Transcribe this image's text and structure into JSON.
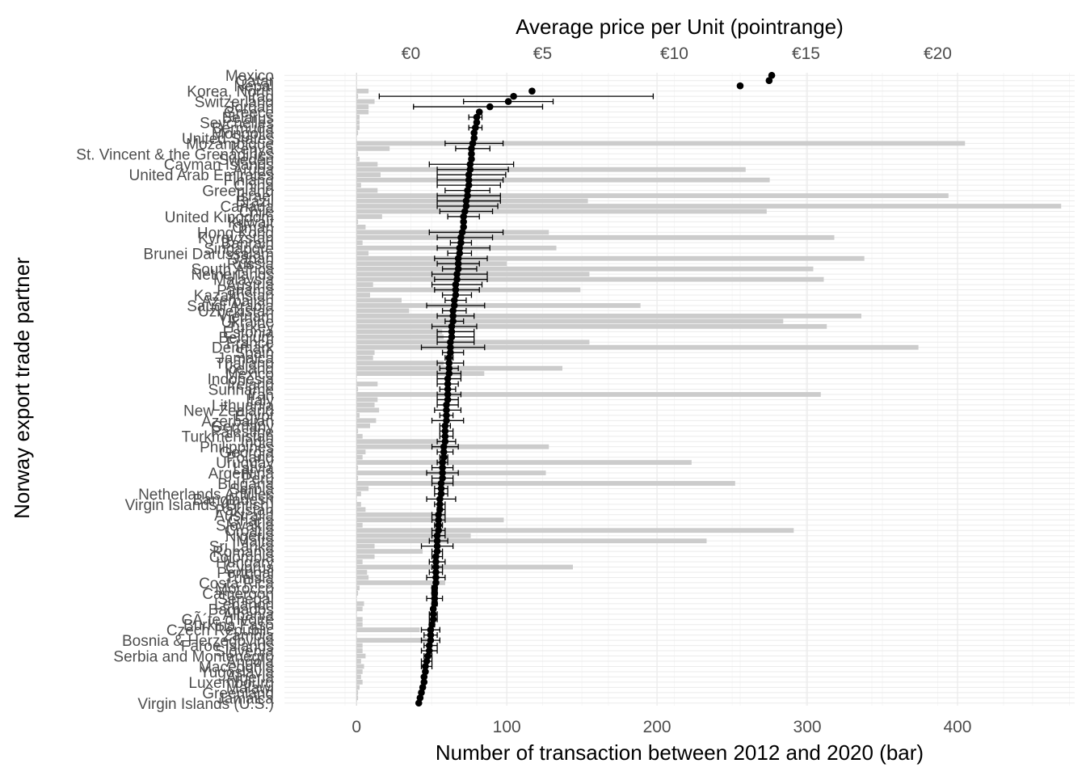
{
  "chart_data": {
    "type": "bar",
    "x_title_bottom": "Number of transaction between 2012 and 2020 (bar)",
    "x_title_top": "Average price per Unit (pointrange)",
    "y_title": "Norway export trade partner",
    "bottom_axis": {
      "range": [
        -48,
        478
      ],
      "ticks": [
        0,
        100,
        200,
        300,
        400
      ]
    },
    "top_axis": {
      "range": [
        -4.8,
        25.2
      ],
      "ticks": [
        0,
        5,
        10,
        15,
        20
      ],
      "tick_labels": [
        "€0",
        "€5",
        "€10",
        "€15",
        "€20"
      ]
    },
    "grid": true,
    "legend": "none",
    "colors": {
      "bar": "#cccccc",
      "point": "#000000",
      "grid_major": "#ebebeb",
      "grid_minor": "#f4f4f4",
      "zero_line": "#d9d9d9"
    },
    "categories": [
      "Mexico",
      "Qatar",
      "Nepal",
      "Korea, North",
      "Iraq",
      "Switzerland",
      "Jordan",
      "Greece",
      "Belarus",
      "Seychelles",
      "Bermuda",
      "Mongolia",
      "United States",
      "Mozambique",
      "Kenya",
      "St. Vincent & the Grenadines",
      "Sweden",
      "Cayman Islands",
      "Aruba",
      "United Arab Emirates",
      "Finland",
      "China",
      "Greenland",
      "Israel",
      "Brazil",
      "Canada",
      "Chile",
      "United Kingdom",
      "Kuwait",
      "Oman",
      "Hong Kong",
      "Kyrgyzstan",
      "Bahrain",
      "Singapore",
      "Brunei Darussalam",
      "Japan",
      "Russia",
      "South Africa",
      "Netherlands",
      "Malaysia",
      "Austria",
      "Panama",
      "Kazakhstan",
      "Azerbaijan",
      "Saudi Arabia",
      "Uzbekistan",
      "Vietnam",
      "Ukraine",
      "Turkey",
      "Estonia",
      "Belgium",
      "France",
      "Denmark",
      "Spain",
      "Jamaica",
      "Thailand",
      "Iceland",
      "Mexico ",
      "Indonesia",
      "Ireland",
      "Suriname",
      "Iran",
      "Italy",
      "Lithuania",
      "New Zealand",
      "Egypt",
      "Azerbaijan ",
      "Germany",
      "Palestine",
      "Turkmenistan",
      "India",
      "Philippines",
      "Georgia",
      "Poland",
      "Uruguay",
      "Latvia",
      "Argentina",
      "Peru",
      "Bulgaria",
      "Serbia",
      "Netherlands Antilles",
      "Bangladesh",
      "Virgin Islands (British)",
      "Pakistan",
      "Australia",
      "Ghana",
      "Slovakia",
      "Croatia",
      "Nigeria",
      "Malta",
      "Sri Lanka",
      "Romania",
      "Colombia",
      "Hungary",
      "Cyprus",
      "Portugal",
      "Tunisia",
      "Costa Rica",
      "Morocco",
      "Cameroon",
      "Senegal",
      "Lebanon",
      "Barbados",
      "Albania",
      "CÃ´te d'Ivoire",
      "Burkina Faso",
      "Czech Republic",
      "Zambia",
      "Bosnia & Herzegovina",
      "Faroe Islands",
      "Slovenia",
      "Serbia and Montenegro",
      "Angola",
      "Macedonia",
      "Yugoslavia",
      "Algeria",
      "Luxembourg",
      "Malawi",
      "Greenland ",
      "Jamaica ",
      "Virgin Islands (U.S.)"
    ],
    "bar_values": [
      0,
      0,
      0,
      8,
      1,
      12,
      8,
      8,
      2,
      2,
      2,
      1,
      0,
      405,
      22,
      1,
      2,
      14,
      259,
      16,
      275,
      3,
      14,
      394,
      154,
      469,
      273,
      17,
      1,
      6,
      128,
      318,
      4,
      133,
      8,
      338,
      100,
      304,
      155,
      311,
      11,
      149,
      9,
      30,
      189,
      35,
      336,
      284,
      313,
      57,
      58,
      155,
      374,
      12,
      11,
      58,
      137,
      85,
      0,
      14,
      1,
      309,
      14,
      12,
      15,
      2,
      13,
      9,
      1,
      4,
      56,
      128,
      6,
      4,
      223,
      1,
      126,
      1,
      252,
      8,
      3,
      0,
      3,
      6,
      59,
      98,
      4,
      291,
      76,
      233,
      12,
      44,
      12,
      4,
      144,
      7,
      8,
      59,
      2,
      1,
      0,
      5,
      4,
      0,
      4,
      4,
      42,
      0,
      47,
      4,
      4,
      6,
      3,
      5,
      4,
      3,
      4,
      2,
      1,
      1,
      0
    ],
    "points": [
      {
        "category": "Mexico",
        "price": 13.7
      },
      {
        "category": "Qatar",
        "price": 13.6
      },
      {
        "category": "Nepal",
        "price": 12.5
      },
      {
        "category": "Korea, North",
        "price": 4.6,
        "low": 4.6,
        "high": 4.6
      },
      {
        "category": "Iraq",
        "price": 3.9,
        "low": -1.2,
        "high": 9.2
      },
      {
        "category": "Switzerland",
        "price": 3.7,
        "low": 2.0,
        "high": 5.4
      },
      {
        "category": "Jordan",
        "price": 3.0,
        "low": 0.1,
        "high": 5.0
      },
      {
        "category": "Greece",
        "price": 2.6,
        "low": 2.6,
        "high": 2.6
      },
      {
        "category": "Belarus",
        "price": 2.5,
        "low": 2.2,
        "high": 2.7
      },
      {
        "category": "Seychelles",
        "price": 2.5,
        "low": 2.5,
        "high": 2.5
      },
      {
        "category": "Bermuda",
        "price": 2.45,
        "low": 2.2,
        "high": 2.7
      },
      {
        "category": "Mongolia",
        "price": 2.4
      },
      {
        "category": "United States",
        "price": 2.4
      },
      {
        "category": "Mozambique",
        "price": 2.35,
        "low": 1.3,
        "high": 3.5
      },
      {
        "category": "Kenya",
        "price": 2.3,
        "low": 1.7,
        "high": 3.0
      },
      {
        "category": "St. Vincent & the Grenadines",
        "price": 2.3
      },
      {
        "category": "Sweden",
        "price": 2.3
      },
      {
        "category": "Cayman Islands",
        "price": 2.25,
        "low": 0.7,
        "high": 3.9
      },
      {
        "category": "Aruba",
        "price": 2.25,
        "low": 1.0,
        "high": 3.7
      },
      {
        "category": "United Arab Emirates",
        "price": 2.2,
        "low": 1.0,
        "high": 3.6
      },
      {
        "category": "Finland",
        "price": 2.2,
        "low": 1.0,
        "high": 3.5
      },
      {
        "category": "China",
        "price": 2.2,
        "low": 1.0,
        "high": 3.4
      },
      {
        "category": "Greenland",
        "price": 2.15,
        "low": 1.3,
        "high": 3.0
      },
      {
        "category": "Israel",
        "price": 2.15,
        "low": 1.0,
        "high": 3.4
      },
      {
        "category": "Brazil",
        "price": 2.1,
        "low": 1.0,
        "high": 3.4
      },
      {
        "category": "Canada",
        "price": 2.1,
        "low": 1.0,
        "high": 3.3
      },
      {
        "category": "Chile",
        "price": 2.05,
        "low": 1.1,
        "high": 3.1
      },
      {
        "category": "United Kingdom",
        "price": 2.0,
        "low": 1.4,
        "high": 2.6
      },
      {
        "category": "Kuwait",
        "price": 2.0
      },
      {
        "category": "Oman",
        "price": 2.0
      },
      {
        "category": "Hong Kong",
        "price": 1.95,
        "low": 0.7,
        "high": 3.5
      },
      {
        "category": "Kyrgyzstan",
        "price": 1.9,
        "low": 1.0,
        "high": 3.1
      },
      {
        "category": "Bahrain",
        "price": 1.9,
        "low": 1.5,
        "high": 2.3
      },
      {
        "category": "Singapore",
        "price": 1.85,
        "low": 1.0,
        "high": 3.0
      },
      {
        "category": "Brunei Darussalam",
        "price": 1.85,
        "low": 1.4,
        "high": 2.3
      },
      {
        "category": "Japan",
        "price": 1.8,
        "low": 0.9,
        "high": 2.9
      },
      {
        "category": "Russia",
        "price": 1.8,
        "low": 1.0,
        "high": 2.6
      },
      {
        "category": "South Africa",
        "price": 1.8,
        "low": 1.2,
        "high": 2.5
      },
      {
        "category": "Netherlands",
        "price": 1.75,
        "low": 0.8,
        "high": 2.9
      },
      {
        "category": "Malaysia",
        "price": 1.75,
        "low": 0.9,
        "high": 2.9
      },
      {
        "category": "Austria",
        "price": 1.7,
        "low": 0.8,
        "high": 2.7
      },
      {
        "category": "Panama",
        "price": 1.7,
        "low": 0.9,
        "high": 2.6
      },
      {
        "category": "Kazakhstan",
        "price": 1.7,
        "low": 1.2,
        "high": 2.3
      },
      {
        "category": "Azerbaijan",
        "price": 1.65,
        "low": 1.3,
        "high": 2.1
      },
      {
        "category": "Saudi Arabia",
        "price": 1.65,
        "low": 0.6,
        "high": 2.8
      },
      {
        "category": "Uzbekistan",
        "price": 1.6,
        "low": 1.2,
        "high": 2.1
      },
      {
        "category": "Vietnam",
        "price": 1.6,
        "low": 1.0,
        "high": 2.4
      },
      {
        "category": "Ukraine",
        "price": 1.6,
        "low": 1.3,
        "high": 2.0
      },
      {
        "category": "Turkey",
        "price": 1.55,
        "low": 0.8,
        "high": 2.5
      },
      {
        "category": "Estonia",
        "price": 1.55,
        "low": 1.0,
        "high": 2.4
      },
      {
        "category": "Belgium",
        "price": 1.55,
        "low": 1.0,
        "high": 2.4
      },
      {
        "category": "France",
        "price": 1.5,
        "low": 1.0,
        "high": 2.4
      },
      {
        "category": "Denmark",
        "price": 1.5,
        "low": 0.4,
        "high": 2.8
      },
      {
        "category": "Spain",
        "price": 1.5,
        "low": 1.2,
        "high": 2.0
      },
      {
        "category": "Jamaica",
        "price": 1.45,
        "low": 1.3,
        "high": 1.6
      },
      {
        "category": "Thailand",
        "price": 1.45,
        "low": 1.0,
        "high": 2.0
      },
      {
        "category": "Iceland",
        "price": 1.45,
        "low": 1.1,
        "high": 1.8
      },
      {
        "category": "Mexico ",
        "price": 1.45,
        "low": 1.0,
        "high": 1.9
      },
      {
        "category": "Indonesia",
        "price": 1.4,
        "low": 1.0,
        "high": 1.9
      },
      {
        "category": "Ireland",
        "price": 1.4,
        "low": 1.0,
        "high": 1.8
      },
      {
        "category": "Suriname",
        "price": 1.4,
        "low": 1.1,
        "high": 1.7
      },
      {
        "category": "Iran",
        "price": 1.4,
        "low": 1.0,
        "high": 1.9
      },
      {
        "category": "Italy",
        "price": 1.4,
        "low": 1.0,
        "high": 1.8
      },
      {
        "category": "Lithuania",
        "price": 1.35,
        "low": 1.0,
        "high": 1.8
      },
      {
        "category": "New Zealand",
        "price": 1.35,
        "low": 0.9,
        "high": 1.9
      },
      {
        "category": "Egypt",
        "price": 1.35,
        "low": 1.1,
        "high": 1.6
      },
      {
        "category": "Azerbaijan ",
        "price": 1.35,
        "low": 0.8,
        "high": 2.0
      },
      {
        "category": "Germany",
        "price": 1.3,
        "low": 1.1,
        "high": 1.5
      },
      {
        "category": "Palestine",
        "price": 1.3,
        "low": 1.1,
        "high": 1.6
      },
      {
        "category": "Turkmenistan",
        "price": 1.3,
        "low": 1.1,
        "high": 1.6
      },
      {
        "category": "India",
        "price": 1.3,
        "low": 1.0,
        "high": 1.7
      },
      {
        "category": "Philippines",
        "price": 1.25,
        "low": 0.8,
        "high": 1.8
      },
      {
        "category": "Georgia",
        "price": 1.25,
        "low": 1.0,
        "high": 1.6
      },
      {
        "category": "Poland",
        "price": 1.25,
        "low": 1.1,
        "high": 1.4
      },
      {
        "category": "Uruguay",
        "price": 1.2,
        "low": 1.0,
        "high": 1.4
      },
      {
        "category": "Latvia",
        "price": 1.2,
        "low": 0.8,
        "high": 1.6
      },
      {
        "category": "Argentina",
        "price": 1.2,
        "low": 0.6,
        "high": 1.8
      },
      {
        "category": "Peru",
        "price": 1.2,
        "low": 0.8,
        "high": 1.6
      },
      {
        "category": "Bulgaria",
        "price": 1.15,
        "low": 0.8,
        "high": 1.6
      },
      {
        "category": "Serbia",
        "price": 1.15,
        "low": 0.9,
        "high": 1.4
      },
      {
        "category": "Netherlands Antilles",
        "price": 1.15,
        "low": 0.9,
        "high": 1.4
      },
      {
        "category": "Bangladesh",
        "price": 1.1,
        "low": 0.6,
        "high": 1.7
      },
      {
        "category": "Virgin Islands (British)",
        "price": 1.1,
        "low": 0.9,
        "high": 1.3
      },
      {
        "category": "Pakistan",
        "price": 1.1,
        "low": 1.0,
        "high": 1.3
      },
      {
        "category": "Australia",
        "price": 1.05,
        "low": 0.8,
        "high": 1.3
      },
      {
        "category": "Ghana",
        "price": 1.05,
        "low": 0.8,
        "high": 1.3
      },
      {
        "category": "Slovakia",
        "price": 1.05,
        "low": 0.9,
        "high": 1.2
      },
      {
        "category": "Croatia",
        "price": 1.05,
        "low": 0.8,
        "high": 1.3
      },
      {
        "category": "Nigeria",
        "price": 1.0,
        "low": 0.8,
        "high": 1.3
      },
      {
        "category": "Malta",
        "price": 1.0,
        "low": 0.7,
        "high": 1.4
      },
      {
        "category": "Sri Lanka",
        "price": 1.0,
        "low": 0.4,
        "high": 1.6
      },
      {
        "category": "Romania",
        "price": 1.0,
        "low": 0.8,
        "high": 1.2
      },
      {
        "category": "Colombia",
        "price": 0.95,
        "low": 0.8,
        "high": 1.2
      },
      {
        "category": "Hungary",
        "price": 0.95,
        "low": 0.7,
        "high": 1.3
      },
      {
        "category": "Cyprus",
        "price": 0.95,
        "low": 0.8,
        "high": 1.2
      },
      {
        "category": "Portugal",
        "price": 0.95,
        "low": 0.7,
        "high": 1.2
      },
      {
        "category": "Tunisia",
        "price": 0.95,
        "low": 0.6,
        "high": 1.3
      },
      {
        "category": "Costa Rica",
        "price": 0.95,
        "low": 0.9,
        "high": 1.0
      },
      {
        "category": "Morocco",
        "price": 0.9,
        "low": 0.8,
        "high": 1.0
      },
      {
        "category": "Cameroon",
        "price": 0.9,
        "low": 0.8,
        "high": 1.0
      },
      {
        "category": "Senegal",
        "price": 0.9,
        "low": 0.6,
        "high": 1.2
      },
      {
        "category": "Lebanon",
        "price": 0.9,
        "low": 0.8,
        "high": 1.0
      },
      {
        "category": "Barbados",
        "price": 0.85,
        "low": 0.8,
        "high": 0.9
      },
      {
        "category": "Albania",
        "price": 0.85,
        "low": 0.7,
        "high": 1.0
      },
      {
        "category": "CÃ´te d'Ivoire",
        "price": 0.85,
        "low": 0.7,
        "high": 1.0
      },
      {
        "category": "Burkina Faso",
        "price": 0.8,
        "low": 0.7,
        "high": 0.9
      },
      {
        "category": "Czech Republic",
        "price": 0.75,
        "low": 0.4,
        "high": 1.1
      },
      {
        "category": "Zambia",
        "price": 0.75,
        "low": 0.5,
        "high": 1.0
      },
      {
        "category": "Bosnia & Herzegovina",
        "price": 0.75,
        "low": 0.4,
        "high": 1.1
      },
      {
        "category": "Faroe Islands",
        "price": 0.7,
        "low": 0.5,
        "high": 1.0
      },
      {
        "category": "Slovenia",
        "price": 0.7,
        "low": 0.4,
        "high": 1.0
      },
      {
        "category": "Serbia and Montenegro",
        "price": 0.65,
        "low": 0.5,
        "high": 0.8
      },
      {
        "category": "Angola",
        "price": 0.6,
        "low": 0.4,
        "high": 0.8
      },
      {
        "category": "Macedonia",
        "price": 0.55,
        "low": 0.4,
        "high": 0.8
      },
      {
        "category": "Yugoslavia",
        "price": 0.55,
        "low": 0.5,
        "high": 0.6
      },
      {
        "category": "Algeria",
        "price": 0.5
      },
      {
        "category": "Luxembourg",
        "price": 0.5
      },
      {
        "category": "Malawi",
        "price": 0.45
      },
      {
        "category": "Greenland ",
        "price": 0.4
      },
      {
        "category": "Jamaica ",
        "price": 0.35
      },
      {
        "category": "Virgin Islands (U.S.)",
        "price": 0.3
      }
    ],
    "shown_labels": [
      "Mexico",
      "Qatar",
      "Nepal",
      "Korea, North",
      "Iraq",
      "Switzerland",
      "Jordan",
      "Greece",
      "Belarus",
      "Seychelles",
      "Bermuda",
      "Mongolia",
      "United States",
      "Mozambique",
      "Kenya",
      "St. Vincent & the Grenadines",
      "Sweden",
      "Cayman Islands",
      "Aruba",
      "United Arab Emirates",
      "Finland",
      "China",
      "Greenland",
      "Israel",
      "Brazil",
      "Canada",
      "Chile",
      "United Kingdom",
      "Kuwait",
      "Oman",
      "Hong Kong",
      "Kyrgyzstan",
      "Bahrain",
      "Singapore",
      "Brunei Darussalam",
      "Japan",
      "Russia",
      "South Africa",
      "Netherlands",
      "Malaysia",
      "Austria",
      "Panama",
      "Kazakhstan",
      "Azerbaijan",
      "Saudi Arabia",
      "Uzbekistan",
      "Vietnam",
      "Ukraine",
      "Turkey",
      "Estonia",
      "Belgium",
      "France",
      "Denmark",
      "Spain",
      "Jamaica",
      "Thailand",
      "Iceland",
      "Mexico ",
      "Indonesia",
      "Ireland",
      "Suriname",
      "Iran",
      "Italy",
      "Lithuania",
      "New Zealand",
      "Egypt",
      "Azerbaijan ",
      "Germany",
      "Palestine",
      "Turkmenistan",
      "India",
      "Philippines",
      "Georgia",
      "Poland",
      "Uruguay",
      "Latvia",
      "Argentina",
      "Peru",
      "Bulgaria",
      "Serbia",
      "Netherlands Antilles",
      "Bangladesh",
      "Virgin Islands (British)",
      "Pakistan",
      "Australia",
      "Ghana",
      "Slovakia",
      "Croatia",
      "Nigeria",
      "Malta",
      "Sri Lanka",
      "Romania",
      "Colombia",
      "Hungary",
      "Cyprus",
      "Portugal",
      "Tunisia",
      "Costa Rica",
      "Morocco",
      "Cameroon",
      "Senegal",
      "Lebanon",
      "Barbados",
      "Albania",
      "CÃ´te d'Ivoire",
      "Burkina Faso",
      "Czech Republic",
      "Zambia",
      "Bosnia & Herzegovina",
      "Faroe Islands",
      "Slovenia",
      "Serbia and Montenegro",
      "Angola",
      "Macedonia",
      "Yugoslavia",
      "Algeria",
      "Luxembourg",
      "Malawi",
      "Greenland ",
      "Jamaica ",
      "Virgin Islands (U.S.)"
    ]
  }
}
